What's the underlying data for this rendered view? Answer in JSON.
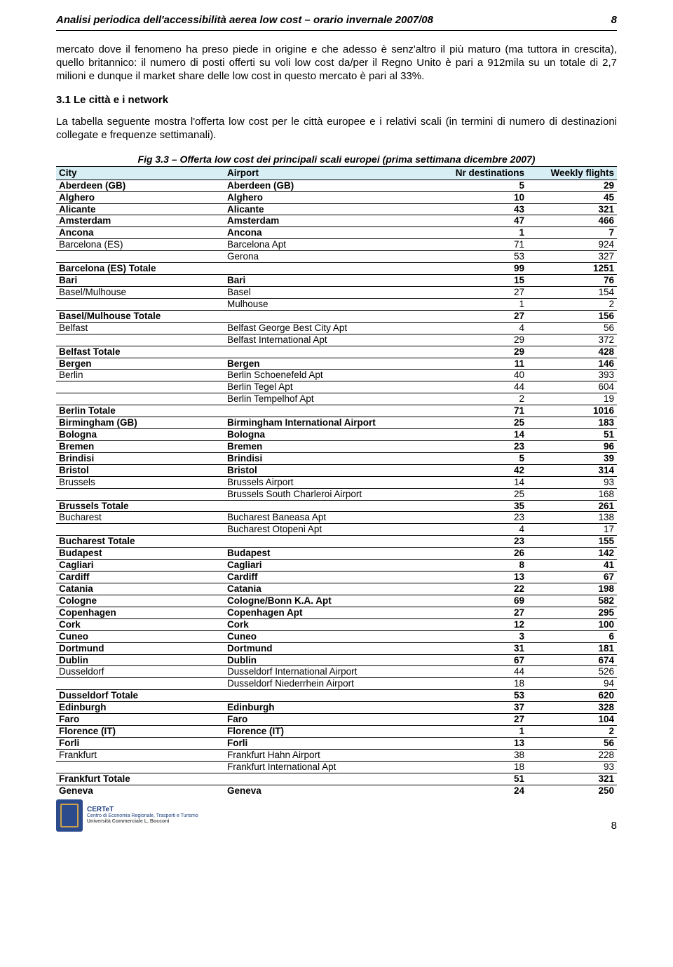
{
  "header": {
    "title": "Analisi periodica dell'accessibilità aerea low cost – orario invernale 2007/08",
    "page_top": "8"
  },
  "paragraph1": "mercato dove il fenomeno ha preso piede in origine e che adesso è senz'altro il più maturo (ma tuttora in crescita), quello britannico: il numero di posti offerti su voli low cost da/per il Regno Unito è pari a 912mila su un totale di 2,7 milioni e dunque il market share delle low cost in questo mercato è pari al 33%.",
  "section_heading": "3.1 Le città e i network",
  "paragraph2": "La tabella seguente mostra l'offerta low cost per le città europee e i relativi scali (in termini di numero di destinazioni collegate e frequenze settimanali).",
  "caption": "Fig 3.3 – Offerta low cost dei principali scali europei (prima settimana dicembre 2007)",
  "columns": {
    "city": "City",
    "airport": "Airport",
    "nr": "Nr destinations",
    "wf": "Weekly flights"
  },
  "rows": [
    {
      "b": 1,
      "city": "Aberdeen (GB)",
      "airport": "Aberdeen (GB)",
      "nr": "5",
      "wf": "29"
    },
    {
      "b": 1,
      "city": "Alghero",
      "airport": "Alghero",
      "nr": "10",
      "wf": "45"
    },
    {
      "b": 1,
      "city": "Alicante",
      "airport": "Alicante",
      "nr": "43",
      "wf": "321"
    },
    {
      "b": 1,
      "city": "Amsterdam",
      "airport": "Amsterdam",
      "nr": "47",
      "wf": "466"
    },
    {
      "b": 1,
      "city": "Ancona",
      "airport": "Ancona",
      "nr": "1",
      "wf": "7"
    },
    {
      "b": 0,
      "city": "Barcelona (ES)",
      "airport": "Barcelona Apt",
      "nr": "71",
      "wf": "924"
    },
    {
      "b": 0,
      "city": "",
      "airport": "Gerona",
      "nr": "53",
      "wf": "327"
    },
    {
      "b": 1,
      "city": "Barcelona (ES) Totale",
      "airport": "",
      "nr": "99",
      "wf": "1251"
    },
    {
      "b": 1,
      "city": "Bari",
      "airport": "Bari",
      "nr": "15",
      "wf": "76"
    },
    {
      "b": 0,
      "city": "Basel/Mulhouse",
      "airport": "Basel",
      "nr": "27",
      "wf": "154"
    },
    {
      "b": 0,
      "city": "",
      "airport": "Mulhouse",
      "nr": "1",
      "wf": "2"
    },
    {
      "b": 1,
      "city": "Basel/Mulhouse Totale",
      "airport": "",
      "nr": "27",
      "wf": "156"
    },
    {
      "b": 0,
      "city": "Belfast",
      "airport": "Belfast George Best City Apt",
      "nr": "4",
      "wf": "56"
    },
    {
      "b": 0,
      "city": "",
      "airport": "Belfast International Apt",
      "nr": "29",
      "wf": "372"
    },
    {
      "b": 1,
      "city": "Belfast Totale",
      "airport": "",
      "nr": "29",
      "wf": "428"
    },
    {
      "b": 1,
      "city": "Bergen",
      "airport": "Bergen",
      "nr": "11",
      "wf": "146"
    },
    {
      "b": 0,
      "city": "Berlin",
      "airport": "Berlin Schoenefeld Apt",
      "nr": "40",
      "wf": "393"
    },
    {
      "b": 0,
      "city": "",
      "airport": "Berlin Tegel Apt",
      "nr": "44",
      "wf": "604"
    },
    {
      "b": 0,
      "city": "",
      "airport": "Berlin Tempelhof Apt",
      "nr": "2",
      "wf": "19"
    },
    {
      "b": 1,
      "city": "Berlin Totale",
      "airport": "",
      "nr": "71",
      "wf": "1016"
    },
    {
      "b": 1,
      "city": "Birmingham (GB)",
      "airport": "Birmingham International Airport",
      "nr": "25",
      "wf": "183"
    },
    {
      "b": 1,
      "city": "Bologna",
      "airport": "Bologna",
      "nr": "14",
      "wf": "51"
    },
    {
      "b": 1,
      "city": "Bremen",
      "airport": "Bremen",
      "nr": "23",
      "wf": "96"
    },
    {
      "b": 1,
      "city": "Brindisi",
      "airport": "Brindisi",
      "nr": "5",
      "wf": "39"
    },
    {
      "b": 1,
      "city": "Bristol",
      "airport": "Bristol",
      "nr": "42",
      "wf": "314"
    },
    {
      "b": 0,
      "city": "Brussels",
      "airport": "Brussels Airport",
      "nr": "14",
      "wf": "93"
    },
    {
      "b": 0,
      "city": "",
      "airport": "Brussels South Charleroi Airport",
      "nr": "25",
      "wf": "168"
    },
    {
      "b": 1,
      "city": "Brussels Totale",
      "airport": "",
      "nr": "35",
      "wf": "261"
    },
    {
      "b": 0,
      "city": "Bucharest",
      "airport": "Bucharest Baneasa Apt",
      "nr": "23",
      "wf": "138"
    },
    {
      "b": 0,
      "city": "",
      "airport": "Bucharest Otopeni Apt",
      "nr": "4",
      "wf": "17"
    },
    {
      "b": 1,
      "city": "Bucharest Totale",
      "airport": "",
      "nr": "23",
      "wf": "155"
    },
    {
      "b": 1,
      "city": "Budapest",
      "airport": "Budapest",
      "nr": "26",
      "wf": "142"
    },
    {
      "b": 1,
      "city": "Cagliari",
      "airport": "Cagliari",
      "nr": "8",
      "wf": "41"
    },
    {
      "b": 1,
      "city": "Cardiff",
      "airport": "Cardiff",
      "nr": "13",
      "wf": "67"
    },
    {
      "b": 1,
      "city": "Catania",
      "airport": "Catania",
      "nr": "22",
      "wf": "198"
    },
    {
      "b": 1,
      "city": "Cologne",
      "airport": "Cologne/Bonn K.A. Apt",
      "nr": "69",
      "wf": "582"
    },
    {
      "b": 1,
      "city": "Copenhagen",
      "airport": "Copenhagen Apt",
      "nr": "27",
      "wf": "295"
    },
    {
      "b": 1,
      "city": "Cork",
      "airport": "Cork",
      "nr": "12",
      "wf": "100"
    },
    {
      "b": 1,
      "city": "Cuneo",
      "airport": "Cuneo",
      "nr": "3",
      "wf": "6"
    },
    {
      "b": 1,
      "city": "Dortmund",
      "airport": "Dortmund",
      "nr": "31",
      "wf": "181"
    },
    {
      "b": 1,
      "city": "Dublin",
      "airport": "Dublin",
      "nr": "67",
      "wf": "674"
    },
    {
      "b": 0,
      "city": "Dusseldorf",
      "airport": "Dusseldorf International Airport",
      "nr": "44",
      "wf": "526"
    },
    {
      "b": 0,
      "city": "",
      "airport": "Dusseldorf Niederrhein Airport",
      "nr": "18",
      "wf": "94"
    },
    {
      "b": 1,
      "city": "Dusseldorf Totale",
      "airport": "",
      "nr": "53",
      "wf": "620"
    },
    {
      "b": 1,
      "city": "Edinburgh",
      "airport": "Edinburgh",
      "nr": "37",
      "wf": "328"
    },
    {
      "b": 1,
      "city": "Faro",
      "airport": "Faro",
      "nr": "27",
      "wf": "104"
    },
    {
      "b": 1,
      "city": "Florence (IT)",
      "airport": "Florence (IT)",
      "nr": "1",
      "wf": "2"
    },
    {
      "b": 1,
      "city": "Forli",
      "airport": "Forli",
      "nr": "13",
      "wf": "56"
    },
    {
      "b": 0,
      "city": "Frankfurt",
      "airport": "Frankfurt Hahn Airport",
      "nr": "38",
      "wf": "228"
    },
    {
      "b": 0,
      "city": "",
      "airport": "Frankfurt International Apt",
      "nr": "18",
      "wf": "93"
    },
    {
      "b": 1,
      "city": "Frankfurt Totale",
      "airport": "",
      "nr": "51",
      "wf": "321"
    },
    {
      "b": 1,
      "city": "Geneva",
      "airport": "Geneva",
      "nr": "24",
      "wf": "250"
    }
  ],
  "footer": {
    "t1": "CERTeT",
    "t2": "Centro di Economia Regionale, Trasporti e Turismo",
    "t3": "Università Commerciale L. Bocconi",
    "page_bottom": "8"
  }
}
